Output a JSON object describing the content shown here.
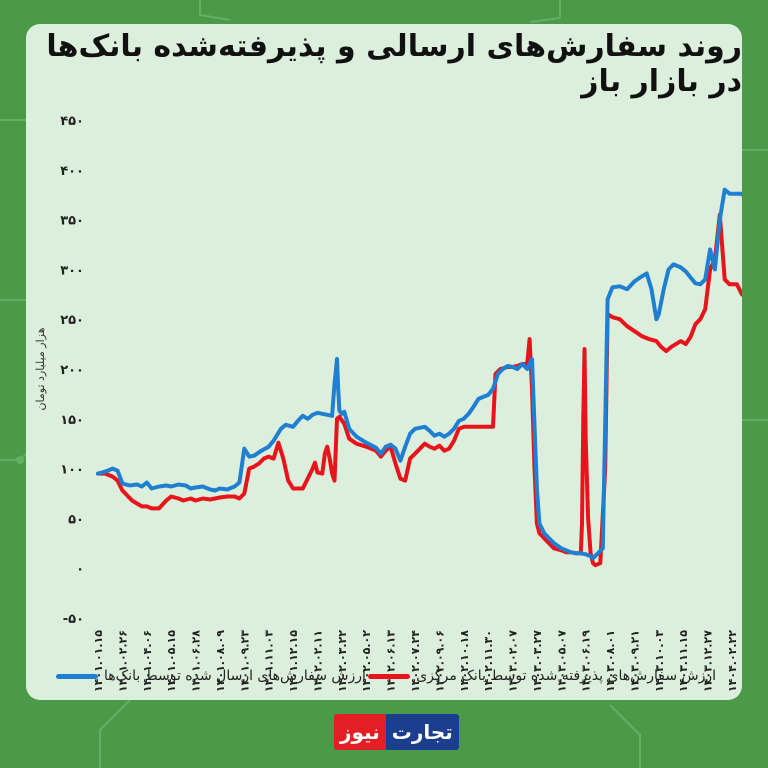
{
  "title": "روند سفارش‌های ارسالی و پذیرفته‌شده بانک‌ها در بازار باز",
  "logo": {
    "part1": "تجارت",
    "part2": "نیوز"
  },
  "colors": {
    "sent": "#1f7fd1",
    "accepted": "#e8141b",
    "logo_red": "#e31e24",
    "logo_blue": "#1b3e8f"
  },
  "chart_data": {
    "type": "line",
    "ylabel": "هزار میلیارد تومان",
    "ylim": [
      -50,
      450
    ],
    "yticks": [
      "۴۵۰",
      "۴۰۰",
      "۳۵۰",
      "۳۰۰",
      "۲۵۰",
      "۲۰۰",
      "۱۵۰",
      "۱۰۰",
      "۵۰",
      "۰",
      "-۵۰"
    ],
    "ytick_values": [
      450,
      400,
      350,
      300,
      250,
      200,
      150,
      100,
      50,
      0,
      -50
    ],
    "grid": false,
    "legend_position": "bottom",
    "x_labels": [
      "۱۴۰۱.۰۱.۱۵",
      "۱۴۰۱.۰۲.۲۶",
      "۱۴۰۱.۰۴.۰۶",
      "۱۴۰۱.۰۵.۱۵",
      "۱۴۰۱.۰۶.۲۸",
      "۱۴۰۱.۰۸.۰۹",
      "۱۴۰۱.۰۹.۲۳",
      "۱۴۰۱.۱۱.۰۳",
      "۱۴۰۱.۱۲.۱۵",
      "۱۴۰۲.۰۲.۱۱",
      "۱۴۰۲.۰۳.۲۲",
      "۱۴۰۲.۰۵.۰۲",
      "۱۴۰۲.۰۶.۱۳",
      "۱۴۰۲.۰۷.۲۴",
      "۱۴۰۲.۰۹.۰۶",
      "۱۴۰۲.۱۰.۱۸",
      "۱۴۰۲.۱۱.۳۰",
      "۱۴۰۳.۰۲.۰۷",
      "۱۴۰۳.۰۳.۲۷",
      "۱۴۰۳.۰۵.۰۷",
      "۱۴۰۳.۰۶.۱۹",
      "۱۴۰۳.۰۸.۰۱",
      "۱۴۰۳.۰۹.۲۱",
      "۱۴۰۳.۱۰.۰۳",
      "۱۴۰۳.۱۱.۱۵",
      "۱۴۰۳.۱۲.۲۷",
      "۱۴۰۴.۰۲.۲۲"
    ],
    "series": [
      {
        "name": "ارزش سفارش‌های ارسال شده توسط بانک‌ها",
        "points": [
          [
            0,
            95
          ],
          [
            0.3,
            97
          ],
          [
            0.6,
            100
          ],
          [
            0.8,
            98
          ],
          [
            1.0,
            85
          ],
          [
            1.3,
            83
          ],
          [
            1.6,
            84
          ],
          [
            1.8,
            82
          ],
          [
            2.0,
            86
          ],
          [
            2.2,
            80
          ],
          [
            2.5,
            82
          ],
          [
            2.8,
            83
          ],
          [
            3.0,
            82
          ],
          [
            3.3,
            84
          ],
          [
            3.6,
            83
          ],
          [
            3.8,
            80
          ],
          [
            4.0,
            81
          ],
          [
            4.3,
            82
          ],
          [
            4.6,
            79
          ],
          [
            4.8,
            78
          ],
          [
            5.0,
            80
          ],
          [
            5.3,
            79
          ],
          [
            5.6,
            82
          ],
          [
            5.8,
            86
          ],
          [
            6.0,
            120
          ],
          [
            6.2,
            112
          ],
          [
            6.4,
            113
          ],
          [
            6.7,
            118
          ],
          [
            7.0,
            122
          ],
          [
            7.2,
            128
          ],
          [
            7.5,
            140
          ],
          [
            7.7,
            144
          ],
          [
            8.0,
            142
          ],
          [
            8.2,
            148
          ],
          [
            8.4,
            153
          ],
          [
            8.6,
            150
          ],
          [
            8.8,
            154
          ],
          [
            9.0,
            156
          ],
          [
            9.2,
            155
          ],
          [
            9.4,
            154
          ],
          [
            9.6,
            153
          ],
          [
            9.7,
            185
          ],
          [
            9.8,
            210
          ],
          [
            9.85,
            180
          ],
          [
            9.9,
            158
          ],
          [
            10.0,
            155
          ],
          [
            10.1,
            157
          ],
          [
            10.3,
            140
          ],
          [
            10.6,
            132
          ],
          [
            11.0,
            126
          ],
          [
            11.4,
            121
          ],
          [
            11.6,
            115
          ],
          [
            11.8,
            122
          ],
          [
            12.0,
            124
          ],
          [
            12.2,
            120
          ],
          [
            12.4,
            108
          ],
          [
            12.6,
            122
          ],
          [
            12.8,
            135
          ],
          [
            13.0,
            140
          ],
          [
            13.2,
            141
          ],
          [
            13.4,
            142
          ],
          [
            13.6,
            138
          ],
          [
            13.8,
            133
          ],
          [
            14.0,
            135
          ],
          [
            14.2,
            132
          ],
          [
            14.4,
            135
          ],
          [
            14.6,
            140
          ],
          [
            14.8,
            148
          ],
          [
            15.0,
            150
          ],
          [
            15.2,
            155
          ],
          [
            15.4,
            162
          ],
          [
            15.6,
            170
          ],
          [
            15.8,
            172
          ],
          [
            16.0,
            174
          ],
          [
            16.2,
            180
          ],
          [
            16.4,
            195
          ],
          [
            16.6,
            200
          ],
          [
            16.8,
            203
          ],
          [
            17.0,
            202
          ],
          [
            17.2,
            200
          ],
          [
            17.4,
            205
          ],
          [
            17.6,
            200
          ],
          [
            17.8,
            210
          ],
          [
            18.0,
            80
          ],
          [
            18.1,
            45
          ],
          [
            18.3,
            35
          ],
          [
            18.5,
            30
          ],
          [
            18.7,
            25
          ],
          [
            19.0,
            20
          ],
          [
            19.2,
            18
          ],
          [
            19.4,
            16
          ],
          [
            19.6,
            15
          ],
          [
            19.8,
            15
          ],
          [
            20.0,
            14
          ],
          [
            20.2,
            12
          ],
          [
            20.3,
            10
          ],
          [
            20.5,
            15
          ],
          [
            20.7,
            20
          ],
          [
            20.9,
            270
          ],
          [
            21.1,
            282
          ],
          [
            21.4,
            283
          ],
          [
            21.7,
            280
          ],
          [
            22.0,
            288
          ],
          [
            22.3,
            293
          ],
          [
            22.5,
            296
          ],
          [
            22.7,
            280
          ],
          [
            22.9,
            250
          ],
          [
            23.0,
            255
          ],
          [
            23.2,
            280
          ],
          [
            23.4,
            300
          ],
          [
            23.6,
            305
          ],
          [
            23.9,
            302
          ],
          [
            24.1,
            298
          ],
          [
            24.3,
            292
          ],
          [
            24.5,
            286
          ],
          [
            24.7,
            285
          ],
          [
            24.9,
            290
          ],
          [
            25.1,
            320
          ],
          [
            25.3,
            300
          ],
          [
            25.5,
            350
          ],
          [
            25.7,
            380
          ],
          [
            25.9,
            376
          ],
          [
            26.2,
            376
          ],
          [
            26.4,
            376
          ],
          [
            26.6,
            370
          ],
          [
            26.8,
            385
          ],
          [
            27.0,
            374
          ]
        ]
      },
      {
        "name": "ارزش سفارش‌های پذیرفته شده توسط بانک مرکزی",
        "points": [
          [
            0,
            95
          ],
          [
            0.3,
            95
          ],
          [
            0.6,
            92
          ],
          [
            0.8,
            88
          ],
          [
            1.0,
            78
          ],
          [
            1.2,
            73
          ],
          [
            1.4,
            68
          ],
          [
            1.6,
            65
          ],
          [
            1.8,
            62
          ],
          [
            2.0,
            62
          ],
          [
            2.2,
            60
          ],
          [
            2.5,
            60
          ],
          [
            2.8,
            68
          ],
          [
            3.0,
            72
          ],
          [
            3.3,
            70
          ],
          [
            3.5,
            68
          ],
          [
            3.8,
            70
          ],
          [
            4.0,
            68
          ],
          [
            4.3,
            70
          ],
          [
            4.6,
            69
          ],
          [
            4.8,
            70
          ],
          [
            5.0,
            71
          ],
          [
            5.3,
            72
          ],
          [
            5.6,
            72
          ],
          [
            5.8,
            70
          ],
          [
            6.0,
            75
          ],
          [
            6.2,
            100
          ],
          [
            6.4,
            102
          ],
          [
            6.6,
            105
          ],
          [
            6.8,
            110
          ],
          [
            7.0,
            112
          ],
          [
            7.2,
            110
          ],
          [
            7.4,
            126
          ],
          [
            7.6,
            110
          ],
          [
            7.8,
            88
          ],
          [
            8.0,
            80
          ],
          [
            8.2,
            80
          ],
          [
            8.4,
            80
          ],
          [
            8.6,
            90
          ],
          [
            8.8,
            100
          ],
          [
            8.9,
            106
          ],
          [
            9.0,
            96
          ],
          [
            9.2,
            95
          ],
          [
            9.3,
            115
          ],
          [
            9.4,
            122
          ],
          [
            9.5,
            110
          ],
          [
            9.6,
            95
          ],
          [
            9.7,
            88
          ],
          [
            9.8,
            150
          ],
          [
            9.9,
            152
          ],
          [
            10.1,
            145
          ],
          [
            10.3,
            130
          ],
          [
            10.6,
            125
          ],
          [
            11.0,
            122
          ],
          [
            11.4,
            118
          ],
          [
            11.6,
            112
          ],
          [
            11.8,
            118
          ],
          [
            12.0,
            122
          ],
          [
            12.2,
            105
          ],
          [
            12.4,
            90
          ],
          [
            12.6,
            88
          ],
          [
            12.8,
            110
          ],
          [
            13.0,
            115
          ],
          [
            13.2,
            120
          ],
          [
            13.4,
            125
          ],
          [
            13.6,
            122
          ],
          [
            13.8,
            120
          ],
          [
            14.0,
            123
          ],
          [
            14.2,
            118
          ],
          [
            14.4,
            120
          ],
          [
            14.6,
            128
          ],
          [
            14.8,
            140
          ],
          [
            15.0,
            142
          ],
          [
            15.2,
            142
          ],
          [
            15.4,
            142
          ],
          [
            15.6,
            142
          ],
          [
            15.8,
            142
          ],
          [
            16.0,
            142
          ],
          [
            16.2,
            142
          ],
          [
            16.3,
            195
          ],
          [
            16.5,
            200
          ],
          [
            16.8,
            202
          ],
          [
            17.0,
            202
          ],
          [
            17.2,
            203
          ],
          [
            17.4,
            205
          ],
          [
            17.6,
            205
          ],
          [
            17.7,
            230
          ],
          [
            17.8,
            180
          ],
          [
            17.9,
            100
          ],
          [
            18.0,
            45
          ],
          [
            18.1,
            35
          ],
          [
            18.3,
            30
          ],
          [
            18.5,
            25
          ],
          [
            18.7,
            20
          ],
          [
            19.0,
            18
          ],
          [
            19.2,
            16
          ],
          [
            19.4,
            16
          ],
          [
            19.6,
            15
          ],
          [
            19.8,
            15
          ],
          [
            19.85,
            45
          ],
          [
            19.9,
            150
          ],
          [
            19.95,
            220
          ],
          [
            20.0,
            130
          ],
          [
            20.1,
            50
          ],
          [
            20.2,
            15
          ],
          [
            20.3,
            5
          ],
          [
            20.4,
            3
          ],
          [
            20.6,
            5
          ],
          [
            20.8,
            100
          ],
          [
            20.9,
            255
          ],
          [
            21.1,
            252
          ],
          [
            21.4,
            250
          ],
          [
            21.7,
            243
          ],
          [
            22.0,
            238
          ],
          [
            22.3,
            233
          ],
          [
            22.6,
            230
          ],
          [
            22.9,
            228
          ],
          [
            23.1,
            222
          ],
          [
            23.3,
            218
          ],
          [
            23.5,
            222
          ],
          [
            23.7,
            225
          ],
          [
            23.9,
            228
          ],
          [
            24.1,
            225
          ],
          [
            24.3,
            232
          ],
          [
            24.5,
            245
          ],
          [
            24.7,
            250
          ],
          [
            24.9,
            260
          ],
          [
            25.1,
            300
          ],
          [
            25.3,
            310
          ],
          [
            25.5,
            355
          ],
          [
            25.7,
            290
          ],
          [
            25.9,
            285
          ],
          [
            26.2,
            285
          ],
          [
            26.4,
            275
          ],
          [
            26.6,
            272
          ],
          [
            26.8,
            300
          ],
          [
            27.0,
            270
          ]
        ]
      }
    ]
  }
}
